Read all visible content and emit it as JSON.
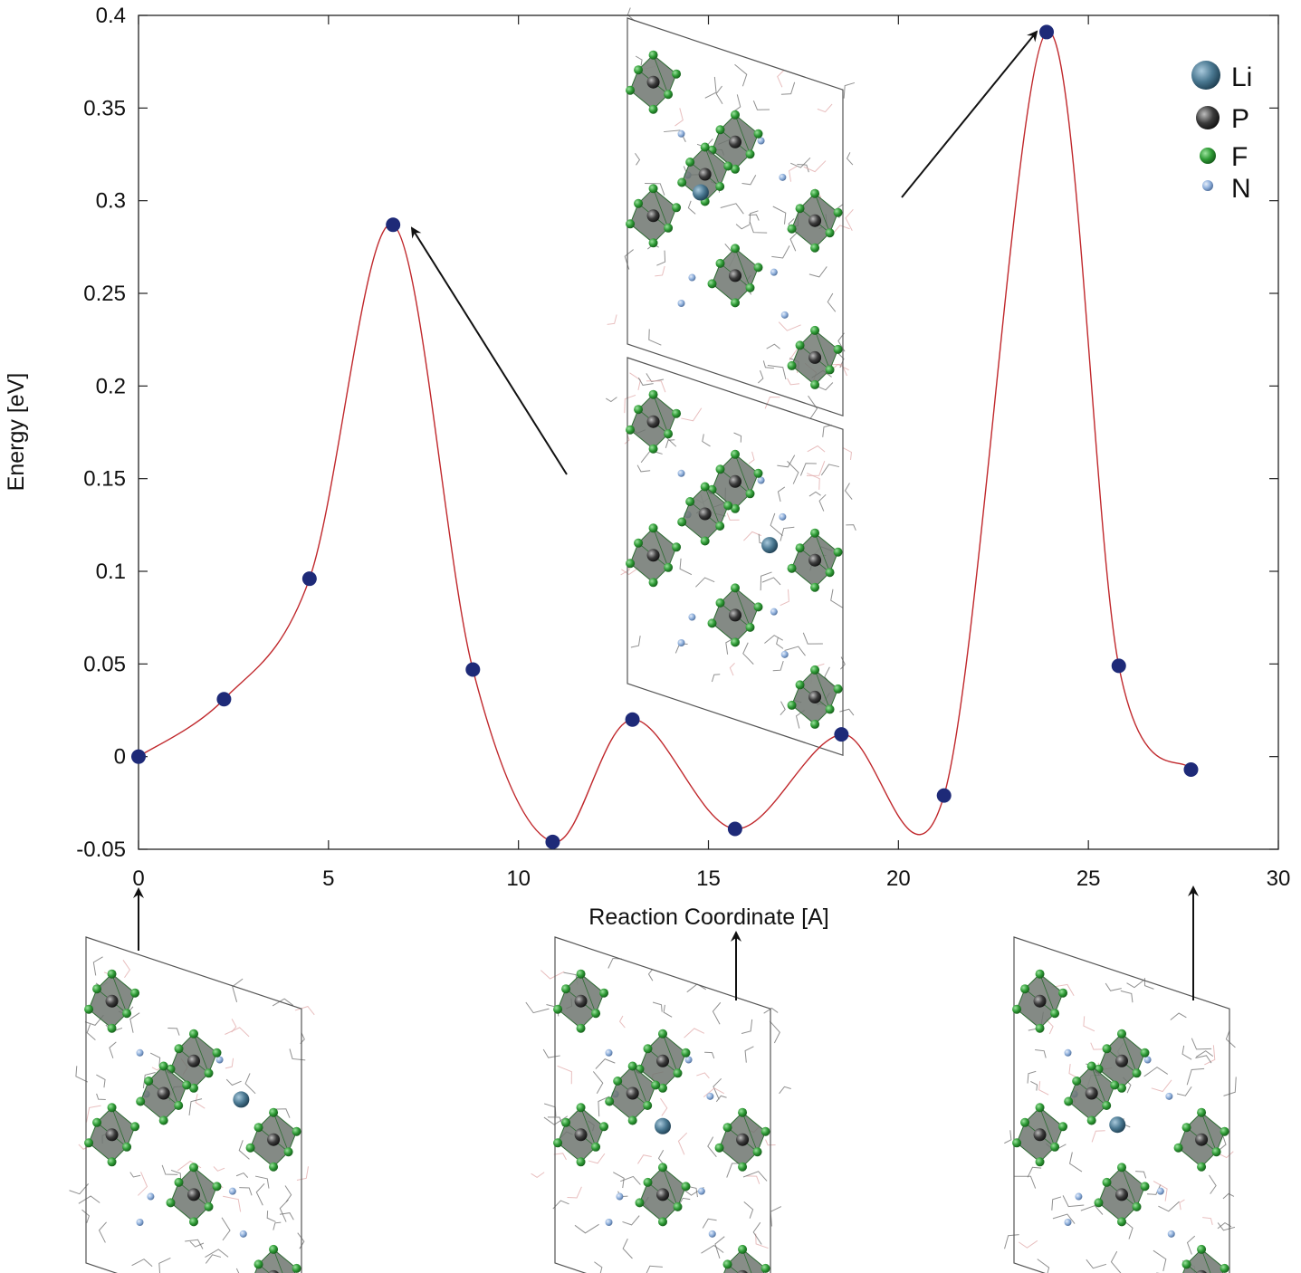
{
  "chart_data": {
    "type": "line",
    "title": "",
    "xlabel": "Reaction Coordinate [A]",
    "ylabel": "Energy [eV]",
    "xlim": [
      0,
      30
    ],
    "ylim": [
      -0.05,
      0.4
    ],
    "xticks": [
      0,
      5,
      10,
      15,
      20,
      25,
      30
    ],
    "xtick_labels": [
      "0",
      "5",
      "10",
      "15",
      "20",
      "25",
      "30"
    ],
    "yticks": [
      -0.05,
      0,
      0.05,
      0.1,
      0.15,
      0.2,
      0.25,
      0.3,
      0.35,
      0.4
    ],
    "ytick_labels": [
      "-0.05",
      "0",
      "0.05",
      "0.1",
      "0.15",
      "0.2",
      "0.25",
      "0.3",
      "0.35",
      "0.4"
    ],
    "grid": false,
    "legend_position": "top-right",
    "series": [
      {
        "x": [
          0,
          2.25,
          4.5,
          6.7,
          8.8,
          10.9,
          13.0,
          15.7,
          18.5,
          21.2,
          23.9,
          25.8,
          27.7
        ],
        "y": [
          0.0,
          0.031,
          0.096,
          0.287,
          0.047,
          -0.046,
          0.02,
          -0.039,
          0.012,
          -0.021,
          0.391,
          0.049,
          -0.007
        ],
        "color": "#1e2a78"
      }
    ],
    "curve_color": "#c0282c",
    "legend": [
      {
        "label": "Li",
        "color": "#4a7891"
      },
      {
        "label": "P",
        "color": "#3c3c3c"
      },
      {
        "label": "F",
        "color": "#2e9a35"
      },
      {
        "label": "N",
        "color": "#8fb0dc"
      }
    ],
    "insets": [
      {
        "name": "structure-top-right",
        "points_to_x": 23.9
      },
      {
        "name": "structure-middle",
        "points_to_x": 6.7
      },
      {
        "name": "structure-bottom-left",
        "points_to_x": 0
      },
      {
        "name": "structure-bottom-middle",
        "points_to_x": 15.7
      },
      {
        "name": "structure-bottom-right",
        "points_to_x": 27.7
      }
    ]
  }
}
